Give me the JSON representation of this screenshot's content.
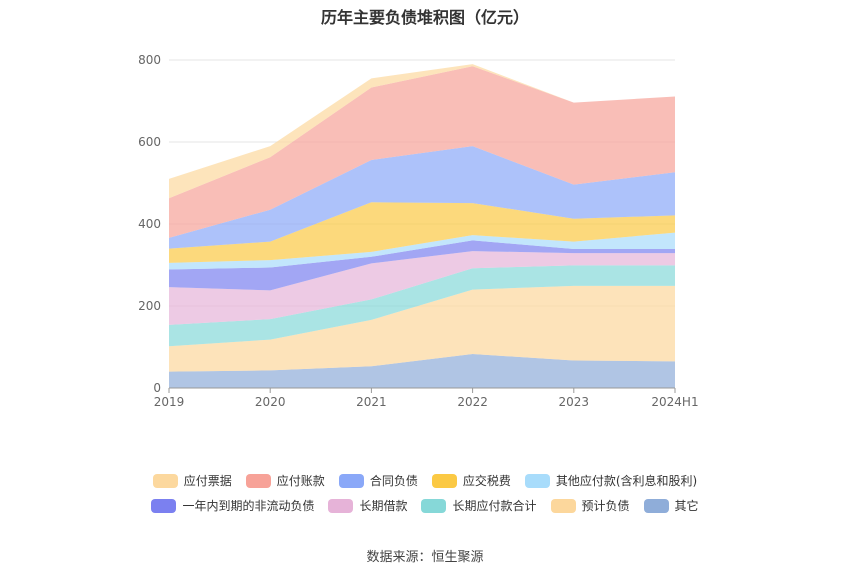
{
  "chart_data": {
    "type": "area",
    "stacked": true,
    "title": "历年主要负债堆积图（亿元）",
    "x": [
      "2019",
      "2020",
      "2021",
      "2022",
      "2023",
      "2024H1"
    ],
    "y_ticks": [
      "0",
      "200",
      "400",
      "600",
      "800"
    ],
    "ylim": [
      0,
      800
    ],
    "grid": true,
    "legend_position": "bottom",
    "series": [
      {
        "name": "其它",
        "color": "#8fadd9",
        "values": [
          40,
          43,
          53,
          83,
          67,
          65
        ]
      },
      {
        "name": "预计负债",
        "color": "#fcd79c",
        "values": [
          62,
          75,
          113,
          157,
          182,
          184
        ]
      },
      {
        "name": "长期应付款合计",
        "color": "#86d8d8",
        "values": [
          52,
          50,
          50,
          52,
          50,
          50
        ]
      },
      {
        "name": "长期借款",
        "color": "#e6b3d8",
        "values": [
          92,
          70,
          88,
          42,
          30,
          30
        ]
      },
      {
        "name": "一年内到期的非流动负债",
        "color": "#7b80f0",
        "values": [
          43,
          56,
          16,
          26,
          10,
          10
        ]
      },
      {
        "name": "其他应付款(含利息和股利)",
        "color": "#a8dcfb",
        "values": [
          16,
          18,
          12,
          13,
          18,
          40
        ]
      },
      {
        "name": "应交税费",
        "color": "#fbc944",
        "values": [
          35,
          45,
          121,
          78,
          56,
          42
        ]
      },
      {
        "name": "合同负债",
        "color": "#8aa8f8",
        "values": [
          26,
          78,
          103,
          139,
          83,
          105
        ]
      },
      {
        "name": "应付账款",
        "color": "#f7a298",
        "values": [
          97,
          128,
          177,
          195,
          200,
          185
        ]
      },
      {
        "name": "应付票据",
        "color": "#fcd89e",
        "values": [
          47,
          27,
          22,
          5,
          0,
          0
        ]
      }
    ],
    "legend_rows": [
      [
        "应付票据",
        "应付账款",
        "合同负债",
        "应交税费",
        "其他应付款(含利息和股利)"
      ],
      [
        "一年内到期的非流动负债",
        "长期借款",
        "长期应付款合计",
        "预计负债",
        "其它"
      ]
    ],
    "source": "数据来源：恒生聚源"
  }
}
